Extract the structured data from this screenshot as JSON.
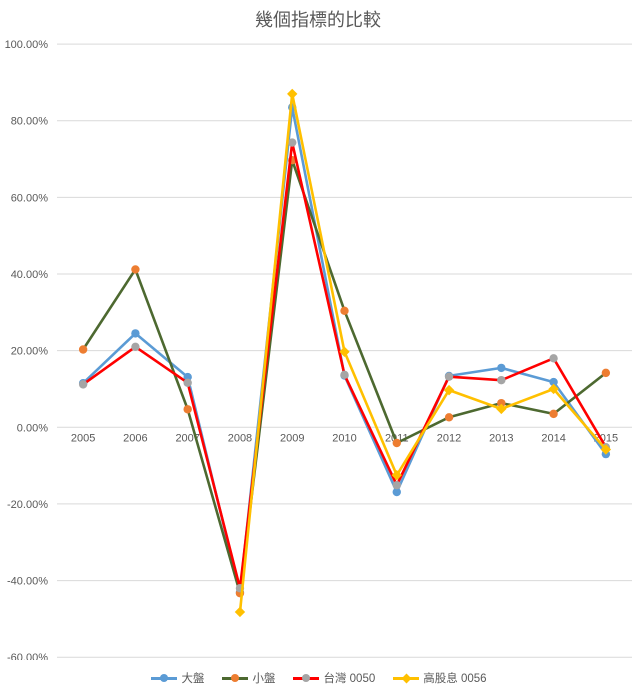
{
  "chart_data": {
    "type": "line",
    "title": "幾個指標的比較",
    "categories": [
      "2005",
      "2006",
      "2007",
      "2008",
      "2009",
      "2010",
      "2011",
      "2012",
      "2013",
      "2014",
      "2015"
    ],
    "y_ticks": [
      {
        "value": 100,
        "label": "100.00%"
      },
      {
        "value": 80,
        "label": "80.00%"
      },
      {
        "value": 60,
        "label": "60.00%"
      },
      {
        "value": 40,
        "label": "40.00%"
      },
      {
        "value": 20,
        "label": "20.00%"
      },
      {
        "value": 0,
        "label": "0.00%"
      },
      {
        "value": -20,
        "label": "-20.00%"
      },
      {
        "value": -40,
        "label": "-40.00%"
      },
      {
        "value": -60,
        "label": "-60.00%"
      }
    ],
    "ylim": [
      -60,
      100
    ],
    "grid": "horizontal",
    "legend_position": "bottom",
    "series": [
      {
        "name": "大盤",
        "line_color": "#5B9BD5",
        "marker_color": "#5B9BD5",
        "marker": "circle",
        "values": [
          11.5,
          24.5,
          13.1,
          -43.1,
          83.5,
          13.5,
          -16.9,
          13.4,
          15.5,
          11.8,
          -7.0
        ]
      },
      {
        "name": "小盤",
        "line_color": "#4D6930",
        "marker_color": "#ED7D31",
        "marker": "circle",
        "values": [
          20.3,
          41.2,
          4.7,
          -43.3,
          69.7,
          30.4,
          -4.1,
          2.6,
          6.3,
          3.5,
          14.2
        ]
      },
      {
        "name": "台灣 0050",
        "line_color": "#FF0000",
        "marker_color": "#A5A5A5",
        "marker": "circle",
        "values": [
          11.2,
          21.0,
          11.6,
          -42.0,
          74.3,
          13.7,
          -15.1,
          13.2,
          12.3,
          18.0,
          -5.2
        ]
      },
      {
        "name": "高股息 0056",
        "line_color": "#FFC000",
        "marker_color": "#FFC000",
        "marker": "diamond",
        "values": [
          null,
          null,
          null,
          -48.2,
          87.0,
          19.7,
          -12.5,
          9.7,
          4.8,
          10.0,
          -5.8
        ]
      }
    ],
    "colors": {
      "grid": "#D9D9D9",
      "axis_text": "#595959",
      "title_text": "#595959",
      "background": "#FFFFFF"
    }
  }
}
